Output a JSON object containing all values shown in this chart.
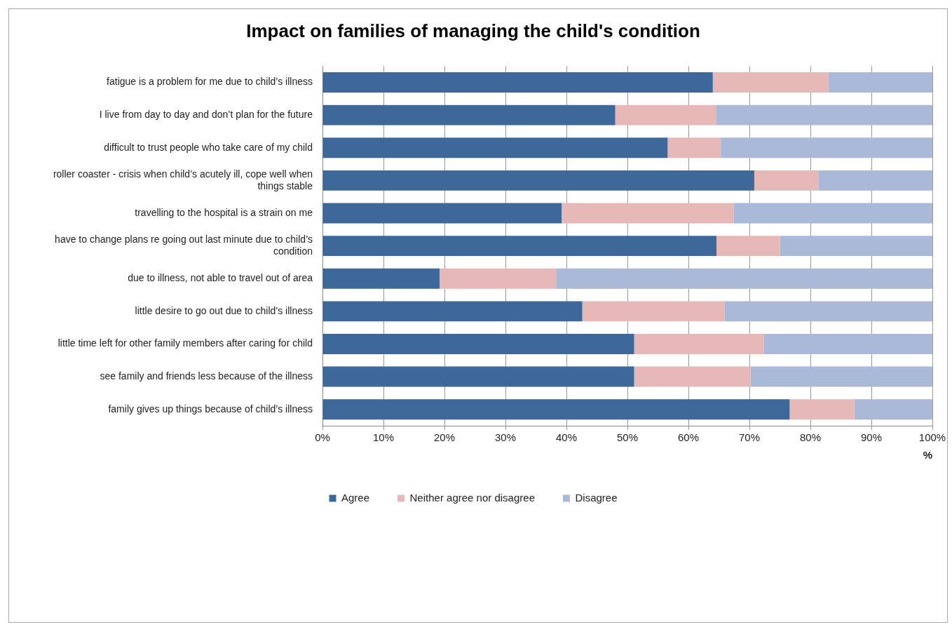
{
  "chart_data": {
    "type": "bar",
    "orientation": "horizontal",
    "stacked": true,
    "title": "Impact on families of managing the child's condition",
    "xlabel": "%",
    "categories": [
      "fatigue is a problem for me due to child’s illness",
      "I live from day to day and don’t plan for the future",
      "difficult to trust people who take care of my child",
      "roller coaster - crisis when child’s acutely ill, cope well when things stable",
      "travelling to the hospital is a strain on me",
      "have to change plans re going out last minute due to child’s condition",
      "due to illness, not able to travel out of area",
      "little desire to go out due to child’s illness",
      "little time left for other family members after caring for child",
      "see family and friends less because of the illness",
      "family gives up things because of child’s illness"
    ],
    "series": [
      {
        "name": "Agree",
        "color": "#3e6899",
        "values": [
          64,
          48,
          56.6,
          70.8,
          39.2,
          64.6,
          19.2,
          42.6,
          51.1,
          51.1,
          76.6
        ]
      },
      {
        "name": "Neither agree nor disagree",
        "color": "#e6b8b7",
        "values": [
          19,
          16.6,
          8.7,
          10.5,
          28.2,
          10.4,
          19.1,
          23.3,
          21.3,
          19.1,
          10.6
        ]
      },
      {
        "name": "Disagree",
        "color": "#a9b9d7",
        "values": [
          17,
          35.4,
          34.7,
          18.7,
          32.6,
          25,
          61.7,
          34.1,
          27.6,
          29.8,
          12.8
        ]
      }
    ],
    "xlim": [
      0,
      100
    ],
    "xticks": [
      {
        "value": 0,
        "label": "0%"
      },
      {
        "value": 10,
        "label": "10%"
      },
      {
        "value": 20,
        "label": "20%"
      },
      {
        "value": 30,
        "label": "30%"
      },
      {
        "value": 40,
        "label": "40%"
      },
      {
        "value": 50,
        "label": "50%"
      },
      {
        "value": 60,
        "label": "60%"
      },
      {
        "value": 70,
        "label": "70%"
      },
      {
        "value": 80,
        "label": "80%"
      },
      {
        "value": 90,
        "label": "90%"
      },
      {
        "value": 100,
        "label": "100%"
      }
    ],
    "grid": "x",
    "legend": "bottom"
  }
}
